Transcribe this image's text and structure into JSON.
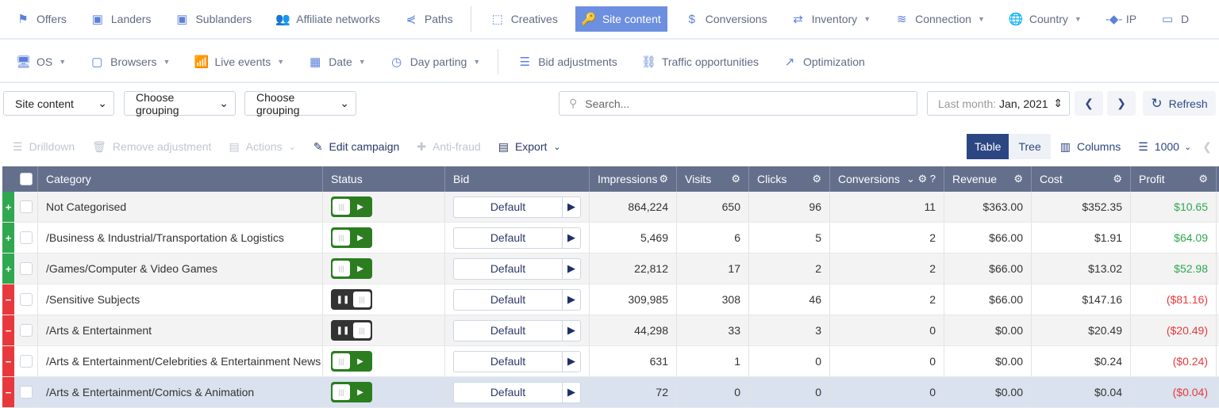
{
  "nav_primary": [
    {
      "label": "Offers",
      "icon": "flag-icon",
      "glyph": "⚑"
    },
    {
      "label": "Landers",
      "icon": "lander-icon",
      "glyph": "▣"
    },
    {
      "label": "Sublanders",
      "icon": "sublander-icon",
      "glyph": "▣"
    },
    {
      "label": "Affiliate networks",
      "icon": "users-icon",
      "glyph": "👥"
    },
    {
      "label": "Paths",
      "icon": "split-icon",
      "glyph": "⋞"
    },
    {
      "label": "Creatives",
      "icon": "cursor-icon",
      "glyph": "⬚",
      "sep": true
    },
    {
      "label": "Site content",
      "icon": "key-icon",
      "glyph": "🔑",
      "active": true
    },
    {
      "label": "Conversions",
      "icon": "coin-icon",
      "glyph": "$"
    },
    {
      "label": "Inventory",
      "icon": "swap-icon",
      "glyph": "⇄",
      "caret": true
    },
    {
      "label": "Connection",
      "icon": "wifi-icon",
      "glyph": "≋",
      "caret": true
    },
    {
      "label": "Country",
      "icon": "globe-icon",
      "glyph": "🌐",
      "caret": true
    },
    {
      "label": "IP",
      "icon": "ip-icon",
      "glyph": "-◆-"
    },
    {
      "label": "D",
      "icon": "devices-icon",
      "glyph": "▭"
    }
  ],
  "nav_secondary": [
    {
      "label": "OS",
      "icon": "monitor-icon",
      "glyph": "🖥",
      "caret": true
    },
    {
      "label": "Browsers",
      "icon": "browser-icon",
      "glyph": "▢",
      "caret": true
    },
    {
      "label": "Live events",
      "icon": "live-icon",
      "glyph": "📶",
      "caret": true
    },
    {
      "label": "Date",
      "icon": "calendar-icon",
      "glyph": "▦",
      "caret": true
    },
    {
      "label": "Day parting",
      "icon": "clock-icon",
      "glyph": "◷",
      "caret": true,
      "sep_after": true
    },
    {
      "label": "Bid adjustments",
      "icon": "list-icon",
      "glyph": "☰"
    },
    {
      "label": "Traffic opportunities",
      "icon": "binoculars-icon",
      "glyph": "⛓"
    },
    {
      "label": "Optimization",
      "icon": "chart-up-icon",
      "glyph": "↗"
    }
  ],
  "filters": {
    "type": "Site content",
    "grouping1": "Choose grouping",
    "grouping2": "Choose grouping",
    "search_placeholder": "Search...",
    "date_label": "Last month:",
    "date_value": "Jan, 2021",
    "refresh": "Refresh"
  },
  "actions": [
    {
      "label": "Drilldown",
      "icon": "filter-icon",
      "glyph": "☰",
      "enabled": false
    },
    {
      "label": "Remove adjustment",
      "icon": "trash-icon",
      "glyph": "🗑",
      "enabled": false
    },
    {
      "label": "Actions",
      "icon": "file-icon",
      "glyph": "▤",
      "enabled": false,
      "caret": true
    },
    {
      "label": "Edit campaign",
      "icon": "pencil-icon",
      "glyph": "✎",
      "enabled": true
    },
    {
      "label": "Anti-fraud",
      "icon": "medkit-icon",
      "glyph": "✚",
      "enabled": false
    },
    {
      "label": "Export",
      "icon": "document-icon",
      "glyph": "▤",
      "enabled": true,
      "caret": true
    }
  ],
  "view": {
    "table": "Table",
    "tree": "Tree",
    "columns": "Columns",
    "page_size": "1000"
  },
  "colors": {
    "active": "#2c4683",
    "positive": "#2fa84f",
    "negative": "#e8383d",
    "play": "#2b7d1f",
    "pause": "#333333"
  },
  "columns": [
    "Category",
    "Status",
    "Bid",
    "Impressions",
    "Visits",
    "Clicks",
    "Conversions",
    "Revenue",
    "Cost",
    "Profit"
  ],
  "rows": [
    {
      "category": "Not Categorised",
      "status": "active",
      "bid": "Default",
      "impressions": "864,224",
      "visits": "650",
      "clicks": "96",
      "conversions": "11",
      "revenue": "$363.00",
      "cost": "$352.35",
      "profit": "$10.65"
    },
    {
      "category": "/Business & Industrial/Transportation & Logistics",
      "status": "active",
      "bid": "Default",
      "impressions": "5,469",
      "visits": "6",
      "clicks": "5",
      "conversions": "2",
      "revenue": "$66.00",
      "cost": "$1.91",
      "profit": "$64.09"
    },
    {
      "category": "/Games/Computer & Video Games",
      "status": "active",
      "bid": "Default",
      "impressions": "22,812",
      "visits": "17",
      "clicks": "2",
      "conversions": "2",
      "revenue": "$66.00",
      "cost": "$13.02",
      "profit": "$52.98"
    },
    {
      "category": "/Sensitive Subjects",
      "status": "paused",
      "bid": "Default",
      "impressions": "309,985",
      "visits": "308",
      "clicks": "46",
      "conversions": "2",
      "revenue": "$66.00",
      "cost": "$147.16",
      "profit": "($81.16)"
    },
    {
      "category": "/Arts & Entertainment",
      "status": "paused",
      "bid": "Default",
      "impressions": "44,298",
      "visits": "33",
      "clicks": "3",
      "conversions": "0",
      "revenue": "$0.00",
      "cost": "$20.49",
      "profit": "($20.49)"
    },
    {
      "category": "/Arts & Entertainment/Celebrities & Entertainment News",
      "status": "active",
      "bid": "Default",
      "impressions": "631",
      "visits": "1",
      "clicks": "0",
      "conversions": "0",
      "revenue": "$0.00",
      "cost": "$0.24",
      "profit": "($0.24)"
    },
    {
      "category": "/Arts & Entertainment/Comics & Animation",
      "status": "active",
      "bid": "Default",
      "impressions": "72",
      "visits": "0",
      "clicks": "0",
      "conversions": "0",
      "revenue": "$0.00",
      "cost": "$0.04",
      "profit": "($0.04)",
      "selected": true
    }
  ]
}
